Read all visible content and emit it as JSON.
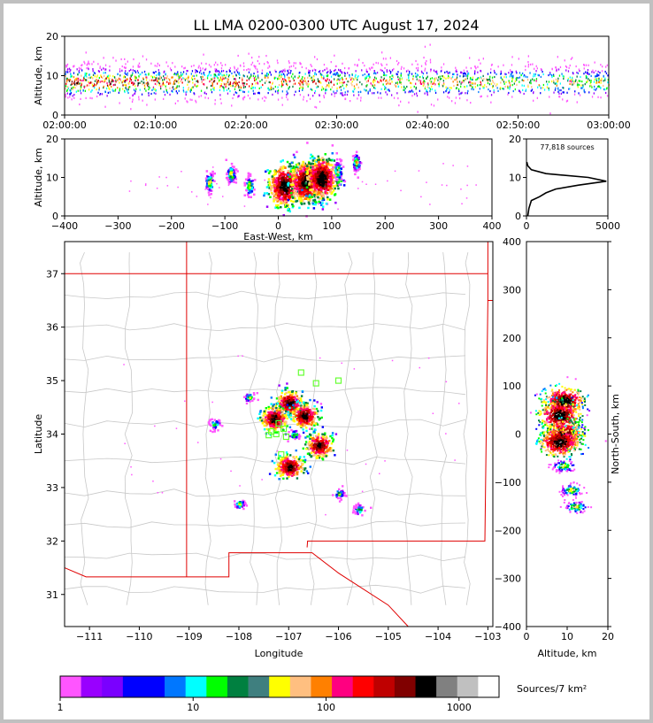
{
  "title": "LL LMA 0200-0300 UTC August 17, 2024",
  "colors": {
    "frame": "#000000",
    "grid": "#d9d9d9",
    "border_state": "#e00000",
    "border_county": "#c8c8c8",
    "station": "#66ff33",
    "palette": [
      "#ff55ff",
      "#9900ff",
      "#7a00ff",
      "#0000ff",
      "#0000ff",
      "#0077ff",
      "#00ffff",
      "#00ff00",
      "#008040",
      "#3f7f7f",
      "#ffff00",
      "#ffbf80",
      "#ff8000",
      "#ff0080",
      "#ff0000",
      "#bf0000",
      "#800000",
      "#000000",
      "#808080",
      "#c0c0c0",
      "#ffffff"
    ]
  },
  "chart_data": [
    {
      "type": "scatter",
      "panel": "time-height",
      "ylabel": "Altitude, km",
      "ylim": [
        0,
        20
      ],
      "yticks": [
        "0",
        "10",
        "20"
      ],
      "xticks": [
        "02:00:00",
        "02:10:00",
        "02:20:00",
        "02:30:00",
        "02:40:00",
        "02:50:00",
        "03:00:00"
      ],
      "xlim": [
        "02:00:00",
        "03:00:00"
      ],
      "note_density_core_altitude_km": [
        5,
        12
      ]
    },
    {
      "type": "scatter",
      "panel": "east-west-altitude",
      "xlabel": "East-West, km",
      "ylabel": "Altitude, km",
      "xlim": [
        -400,
        400
      ],
      "ylim": [
        0,
        20
      ],
      "xticks": [
        "−400",
        "−300",
        "−200",
        "−100",
        "0",
        "100",
        "200",
        "300",
        "400"
      ],
      "yticks": [
        "0",
        "10",
        "20"
      ],
      "clusters": [
        {
          "x_km": -130,
          "alt_km": 9
        },
        {
          "x_km": -90,
          "alt_km": 11
        },
        {
          "x_km": -55,
          "alt_km": 8
        },
        {
          "x_km": 10,
          "alt_km": 8
        },
        {
          "x_km": 50,
          "alt_km": 9
        },
        {
          "x_km": 80,
          "alt_km": 10
        },
        {
          "x_km": 110,
          "alt_km": 12
        },
        {
          "x_km": 145,
          "alt_km": 14
        }
      ]
    },
    {
      "type": "line",
      "panel": "altitude-histogram",
      "annotation": "77,818 sources",
      "xlim": [
        0,
        5000
      ],
      "ylim": [
        0,
        20
      ],
      "xticks": [
        "0",
        "5000"
      ],
      "yticks": [
        "0",
        "10",
        "20"
      ],
      "profile": [
        {
          "alt_km": 0,
          "count": 80
        },
        {
          "alt_km": 2,
          "count": 150
        },
        {
          "alt_km": 4,
          "count": 300
        },
        {
          "alt_km": 5,
          "count": 800
        },
        {
          "alt_km": 6,
          "count": 1200
        },
        {
          "alt_km": 7,
          "count": 1800
        },
        {
          "alt_km": 8,
          "count": 3200
        },
        {
          "alt_km": 9,
          "count": 4900
        },
        {
          "alt_km": 10,
          "count": 3800
        },
        {
          "alt_km": 11,
          "count": 1200
        },
        {
          "alt_km": 12,
          "count": 300
        },
        {
          "alt_km": 13,
          "count": 80
        },
        {
          "alt_km": 14,
          "count": 20
        }
      ]
    },
    {
      "type": "scatter",
      "panel": "plan-view",
      "xlabel": "Longitude",
      "ylabel": "Latitude",
      "xlim": [
        -111.5,
        -102.9
      ],
      "ylim": [
        30.4,
        37.6
      ],
      "xticks": [
        "−111",
        "−110",
        "−109",
        "−108",
        "−107",
        "−106",
        "−105",
        "−104",
        "−103"
      ],
      "yticks": [
        "31",
        "32",
        "33",
        "34",
        "35",
        "36",
        "37"
      ],
      "clusters": [
        {
          "lon": -107.0,
          "lat": 34.6
        },
        {
          "lon": -106.7,
          "lat": 34.35
        },
        {
          "lon": -107.3,
          "lat": 34.3
        },
        {
          "lon": -106.4,
          "lat": 33.8
        },
        {
          "lon": -107.0,
          "lat": 33.4
        },
        {
          "lon": -107.8,
          "lat": 34.7
        },
        {
          "lon": -106.9,
          "lat": 34.0
        },
        {
          "lon": -108.5,
          "lat": 34.2
        },
        {
          "lon": -108.0,
          "lat": 32.7
        },
        {
          "lon": -105.6,
          "lat": 32.6
        },
        {
          "lon": -106.0,
          "lat": 32.9
        }
      ],
      "stations": [
        {
          "lon": -107.25,
          "lat": 34.0
        },
        {
          "lon": -107.1,
          "lat": 34.1
        },
        {
          "lon": -107.35,
          "lat": 34.05
        },
        {
          "lon": -107.05,
          "lat": 33.95
        },
        {
          "lon": -107.15,
          "lat": 33.62
        },
        {
          "lon": -106.75,
          "lat": 35.15
        },
        {
          "lon": -106.45,
          "lat": 34.95
        },
        {
          "lon": -106.0,
          "lat": 35.0
        },
        {
          "lon": -107.4,
          "lat": 33.98
        },
        {
          "lon": -107.2,
          "lat": 34.2
        }
      ]
    },
    {
      "type": "scatter",
      "panel": "north-south-altitude",
      "xlabel": "Altitude, km",
      "ylabel": "North-South, km",
      "xlim": [
        0,
        20
      ],
      "ylim": [
        -400,
        400
      ],
      "xticks": [
        "0",
        "10",
        "20"
      ],
      "yticks": [
        "−400",
        "−300",
        "−200",
        "−100",
        "0",
        "100",
        "200",
        "300",
        "400"
      ],
      "clusters": [
        {
          "alt_km": 9,
          "y_km": 70
        },
        {
          "alt_km": 8,
          "y_km": 40
        },
        {
          "alt_km": 9,
          "y_km": 0
        },
        {
          "alt_km": 8,
          "y_km": -15
        },
        {
          "alt_km": 9,
          "y_km": -65
        },
        {
          "alt_km": 11,
          "y_km": -115
        },
        {
          "alt_km": 12,
          "y_km": -150
        }
      ]
    },
    {
      "type": "heatmap",
      "panel": "colorbar",
      "label": "Sources/7 km²",
      "scale": "log",
      "range": [
        1,
        2000
      ],
      "ticks": [
        "1",
        "10",
        "100",
        "1000"
      ],
      "tick_values": [
        1,
        10,
        100,
        1000
      ]
    }
  ]
}
